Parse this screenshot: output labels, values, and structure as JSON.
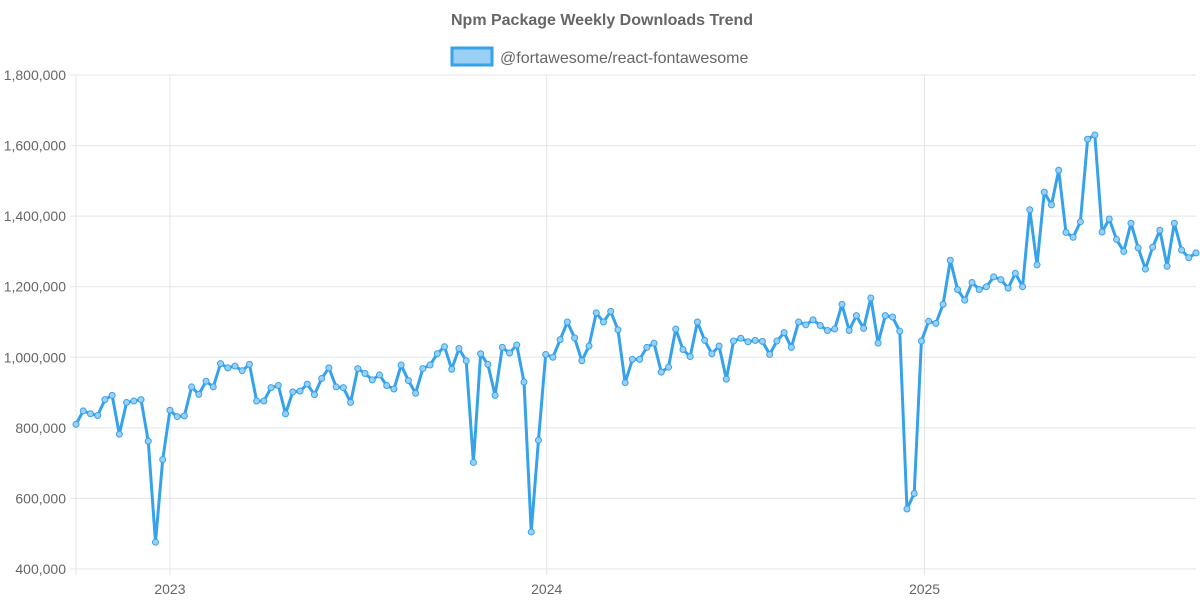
{
  "chart_data": {
    "type": "line",
    "title": "Npm Package Weekly Downloads Trend",
    "xlabel": "",
    "ylabel": "",
    "ylim": [
      400000,
      1800000
    ],
    "y_ticks": [
      400000,
      600000,
      800000,
      1000000,
      1200000,
      1400000,
      1600000,
      1800000
    ],
    "y_tick_labels": [
      "400,000",
      "600,000",
      "800,000",
      "1,000,000",
      "1,200,000",
      "1,400,000",
      "1,600,000",
      "1,800,000"
    ],
    "x_ticks": [
      {
        "label": "2023",
        "date": "2023-01-01"
      },
      {
        "label": "2024",
        "date": "2024-01-01"
      },
      {
        "label": "2025",
        "date": "2025-01-01"
      }
    ],
    "xlim": [
      "2022-10-02",
      "2025-09-21"
    ],
    "x_interval": "weekly",
    "grid": true,
    "legend_position": "top",
    "color": "#36a2eb",
    "fill_color": "#9ad0f5",
    "series": [
      {
        "name": "@fortawesome/react-fontawesome",
        "values": [
          810000,
          848000,
          840000,
          835000,
          880000,
          892000,
          782000,
          872000,
          876000,
          880000,
          762000,
          476000,
          710000,
          850000,
          832000,
          834000,
          916000,
          895000,
          932000,
          916000,
          982000,
          970000,
          975000,
          962000,
          980000,
          876000,
          876000,
          914000,
          920000,
          840000,
          902000,
          904000,
          924000,
          894000,
          940000,
          970000,
          916000,
          914000,
          872000,
          968000,
          954000,
          936000,
          950000,
          920000,
          910000,
          978000,
          934000,
          898000,
          968000,
          978000,
          1010000,
          1030000,
          966000,
          1025000,
          990000,
          702000,
          1010000,
          980000,
          892000,
          1028000,
          1012000,
          1035000,
          930000,
          505000,
          765000,
          1008000,
          1000000,
          1050000,
          1100000,
          1055000,
          990000,
          1032000,
          1126000,
          1100000,
          1130000,
          1078000,
          928000,
          994000,
          994000,
          1028000,
          1040000,
          958000,
          972000,
          1080000,
          1022000,
          1002000,
          1100000,
          1048000,
          1010000,
          1032000,
          938000,
          1046000,
          1054000,
          1044000,
          1048000,
          1045000,
          1008000,
          1046000,
          1070000,
          1028000,
          1100000,
          1092000,
          1106000,
          1090000,
          1076000,
          1080000,
          1150000,
          1076000,
          1118000,
          1082000,
          1168000,
          1040000,
          1118000,
          1114000,
          1074000,
          570000,
          614000,
          1046000,
          1102000,
          1096000,
          1150000,
          1275000,
          1192000,
          1162000,
          1212000,
          1192000,
          1200000,
          1228000,
          1220000,
          1196000,
          1238000,
          1200000,
          1418000,
          1262000,
          1468000,
          1432000,
          1530000,
          1354000,
          1340000,
          1384000,
          1618000,
          1630000,
          1355000,
          1392000,
          1334000,
          1300000,
          1380000,
          1310000,
          1250000,
          1312000,
          1360000,
          1258000,
          1380000,
          1304000,
          1282000,
          1296000
        ]
      }
    ]
  }
}
